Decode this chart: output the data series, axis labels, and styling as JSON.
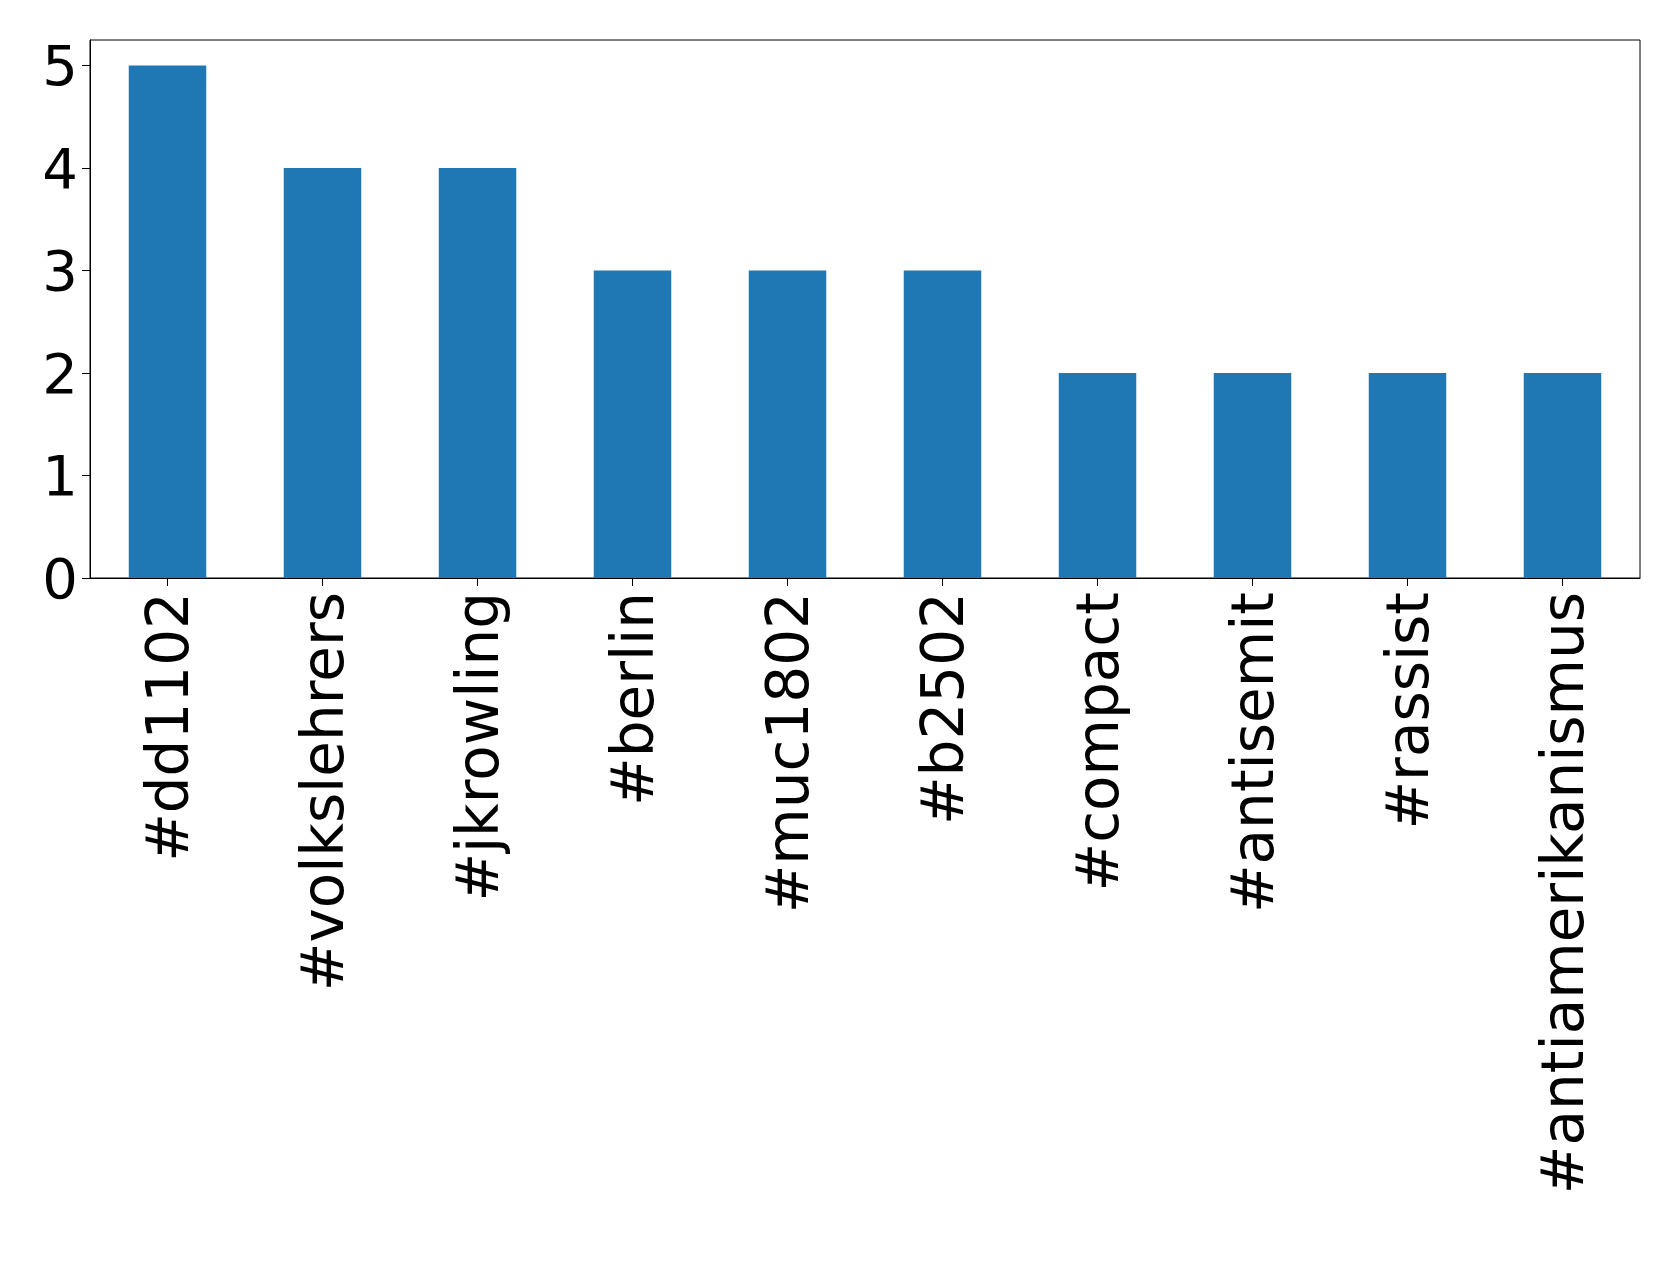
{
  "chart_data": {
    "type": "bar",
    "categories": [
      "#dd1102",
      "#volkslehrers",
      "#jkrowling",
      "#berlin",
      "#muc1802",
      "#b2502",
      "#compact",
      "#antisemit",
      "#rassist",
      "#antiamerikanismus"
    ],
    "values": [
      5,
      4,
      4,
      3,
      3,
      3,
      2,
      2,
      2,
      2
    ],
    "color": "#1f77b4",
    "ylim": [
      0,
      5.25
    ],
    "yticks": [
      0,
      1,
      2,
      3,
      4,
      5
    ],
    "grid": false
  }
}
